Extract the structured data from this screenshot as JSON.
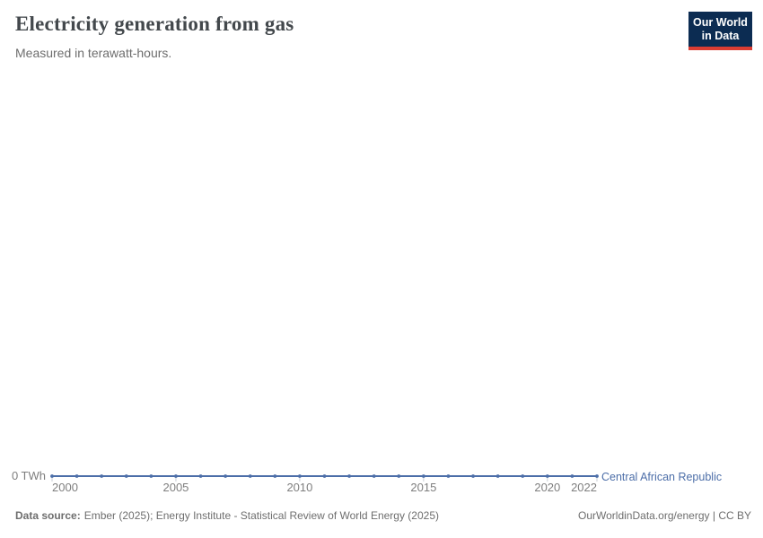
{
  "header": {
    "title": "Electricity generation from gas",
    "subtitle": "Measured in terawatt-hours.",
    "logo": {
      "line1": "Our World",
      "line2": "in Data"
    }
  },
  "chart_data": {
    "type": "line",
    "title": "Electricity generation from gas",
    "subtitle": "Measured in terawatt-hours.",
    "entity": "Central African Republic",
    "unit": "TWh",
    "x": [
      2000,
      2001,
      2002,
      2003,
      2004,
      2005,
      2006,
      2007,
      2008,
      2009,
      2010,
      2011,
      2012,
      2013,
      2014,
      2015,
      2016,
      2017,
      2018,
      2019,
      2020,
      2021,
      2022
    ],
    "series": [
      {
        "name": "Central African Republic",
        "values": [
          0,
          0,
          0,
          0,
          0,
          0,
          0,
          0,
          0,
          0,
          0,
          0,
          0,
          0,
          0,
          0,
          0,
          0,
          0,
          0,
          0,
          0,
          0
        ]
      }
    ],
    "xlim": [
      2000,
      2022
    ],
    "x_ticks": [
      2000,
      2005,
      2010,
      2015,
      2020,
      2022
    ],
    "y_axis_tick_label": "0 TWh",
    "grid": false,
    "legend_position": "right-of-line-end"
  },
  "footer": {
    "data_source_label": "Data source:",
    "data_source_text": "Ember (2025); Energy Institute - Statistical Review of World Energy (2025)",
    "attribution": "OurWorldinData.org/energy | CC BY"
  },
  "colors": {
    "line": "#4c6ea8",
    "axis_text": "#7e7e7e",
    "tick": "#c9ced6",
    "logo_bg": "#0c2c52",
    "logo_red": "#dc3d33"
  }
}
